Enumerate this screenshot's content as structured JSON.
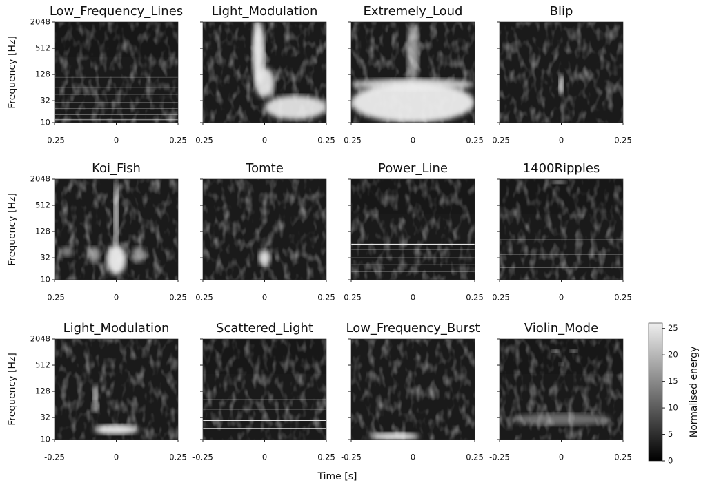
{
  "chart_data": [
    {
      "type": "heatmap",
      "title": "Low_Frequency_Lines",
      "ylabel": "Frequency [Hz]",
      "xlim": [
        -0.25,
        0.25
      ],
      "xticks": [
        -0.25,
        0,
        0.25
      ],
      "ylim": [
        10,
        2048
      ],
      "yticks": [
        10,
        32,
        128,
        512,
        2048
      ],
      "log_y": true,
      "colormap": "gray"
    },
    {
      "type": "heatmap",
      "title": "Light_Modulation",
      "xlim": [
        -0.25,
        0.25
      ],
      "xticks": [
        -0.25,
        0,
        0.25
      ],
      "ylim": [
        10,
        2048
      ],
      "yticks": [
        10,
        32,
        128,
        512,
        2048
      ],
      "log_y": true,
      "colormap": "gray"
    },
    {
      "type": "heatmap",
      "title": "Extremely_Loud",
      "xlim": [
        -0.25,
        0.25
      ],
      "xticks": [
        -0.25,
        0,
        0.25
      ],
      "ylim": [
        10,
        2048
      ],
      "yticks": [
        10,
        32,
        128,
        512,
        2048
      ],
      "log_y": true,
      "colormap": "gray"
    },
    {
      "type": "heatmap",
      "title": "Blip",
      "xlim": [
        -0.25,
        0.25
      ],
      "xticks": [
        -0.25,
        0,
        0.25
      ],
      "ylim": [
        10,
        2048
      ],
      "yticks": [
        10,
        32,
        128,
        512,
        2048
      ],
      "log_y": true,
      "colormap": "gray"
    },
    {
      "type": "heatmap",
      "title": "Koi_Fish",
      "ylabel": "Frequency [Hz]",
      "xlim": [
        -0.25,
        0.25
      ],
      "xticks": [
        -0.25,
        0,
        0.25
      ],
      "ylim": [
        10,
        2048
      ],
      "yticks": [
        10,
        32,
        128,
        512,
        2048
      ],
      "log_y": true,
      "colormap": "gray"
    },
    {
      "type": "heatmap",
      "title": "Tomte",
      "xlim": [
        -0.25,
        0.25
      ],
      "xticks": [
        -0.25,
        0,
        0.25
      ],
      "ylim": [
        10,
        2048
      ],
      "yticks": [
        10,
        32,
        128,
        512,
        2048
      ],
      "log_y": true,
      "colormap": "gray"
    },
    {
      "type": "heatmap",
      "title": "Power_Line",
      "xlim": [
        -0.25,
        0.25
      ],
      "xticks": [
        -0.25,
        0,
        0.25
      ],
      "ylim": [
        10,
        2048
      ],
      "yticks": [
        10,
        32,
        128,
        512,
        2048
      ],
      "log_y": true,
      "colormap": "gray"
    },
    {
      "type": "heatmap",
      "title": "1400Ripples",
      "xlim": [
        -0.25,
        0.25
      ],
      "xticks": [
        -0.25,
        0,
        0.25
      ],
      "ylim": [
        10,
        2048
      ],
      "yticks": [
        10,
        32,
        128,
        512,
        2048
      ],
      "log_y": true,
      "colormap": "gray"
    },
    {
      "type": "heatmap",
      "title": "Light_Modulation",
      "ylabel": "Frequency [Hz]",
      "xlim": [
        -0.25,
        0.25
      ],
      "xticks": [
        -0.25,
        0,
        0.25
      ],
      "ylim": [
        10,
        2048
      ],
      "yticks": [
        10,
        32,
        128,
        512,
        2048
      ],
      "log_y": true,
      "colormap": "gray"
    },
    {
      "type": "heatmap",
      "title": "Scattered_Light",
      "xlim": [
        -0.25,
        0.25
      ],
      "xticks": [
        -0.25,
        0,
        0.25
      ],
      "ylim": [
        10,
        2048
      ],
      "yticks": [
        10,
        32,
        128,
        512,
        2048
      ],
      "log_y": true,
      "colormap": "gray"
    },
    {
      "type": "heatmap",
      "title": "Low_Frequency_Burst",
      "xlim": [
        -0.25,
        0.25
      ],
      "xticks": [
        -0.25,
        0,
        0.25
      ],
      "ylim": [
        10,
        2048
      ],
      "yticks": [
        10,
        32,
        128,
        512,
        2048
      ],
      "log_y": true,
      "colormap": "gray"
    },
    {
      "type": "heatmap",
      "title": "Violin_Mode",
      "xlim": [
        -0.25,
        0.25
      ],
      "xticks": [
        -0.25,
        0,
        0.25
      ],
      "ylim": [
        10,
        2048
      ],
      "yticks": [
        10,
        32,
        128,
        512,
        2048
      ],
      "log_y": true,
      "colormap": "gray"
    }
  ],
  "xlabel": "Time [s]",
  "colorbar": {
    "label": "Normalised energy",
    "lim": [
      0,
      26
    ],
    "ticks": [
      0,
      5,
      10,
      15,
      20,
      25
    ],
    "colormap": "gray"
  }
}
